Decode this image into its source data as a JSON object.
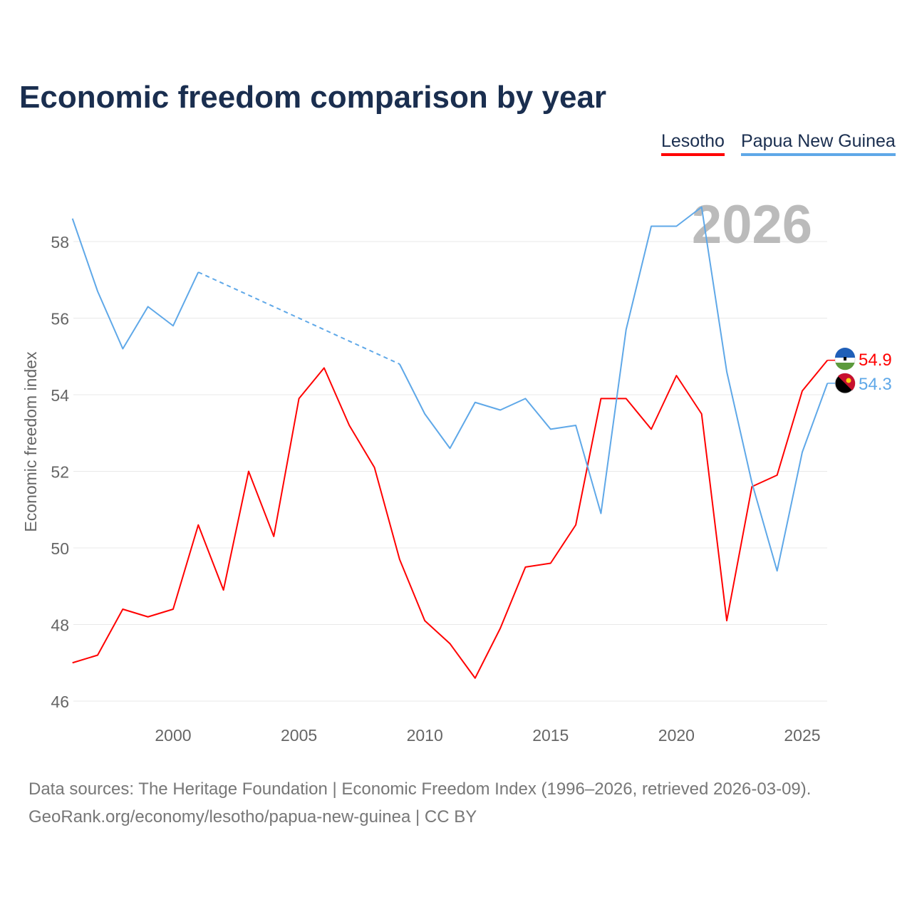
{
  "chart_data": {
    "type": "line",
    "title": "Economic freedom comparison by year",
    "xlabel": "",
    "ylabel": "Economic freedom index",
    "xlim": [
      1996,
      2026
    ],
    "ylim": [
      45.5,
      59.2
    ],
    "x_ticks": [
      2000,
      2005,
      2010,
      2015,
      2020,
      2025
    ],
    "y_ticks": [
      46,
      48,
      50,
      52,
      54,
      56,
      58
    ],
    "grid": true,
    "legend": "top-right",
    "watermark_year": "2026",
    "x": [
      1996,
      1997,
      1998,
      1999,
      2000,
      2001,
      2002,
      2003,
      2004,
      2005,
      2006,
      2007,
      2008,
      2009,
      2010,
      2011,
      2012,
      2013,
      2014,
      2015,
      2016,
      2017,
      2018,
      2019,
      2020,
      2021,
      2022,
      2023,
      2024,
      2025,
      2026
    ],
    "series": [
      {
        "name": "Lesotho",
        "color": "#ff0000",
        "end_label": "54.9",
        "values": [
          47.0,
          47.2,
          48.4,
          48.2,
          48.4,
          50.6,
          48.9,
          52.0,
          50.3,
          53.9,
          54.7,
          53.2,
          52.1,
          49.7,
          48.1,
          47.5,
          46.6,
          47.9,
          49.5,
          49.6,
          50.6,
          53.9,
          53.9,
          53.1,
          54.5,
          53.5,
          48.1,
          51.6,
          51.9,
          54.1,
          54.9
        ]
      },
      {
        "name": "Papua New Guinea",
        "color": "#5fa8e8",
        "end_label": "54.3",
        "values": [
          58.6,
          56.7,
          55.2,
          56.3,
          55.8,
          57.2,
          null,
          null,
          null,
          null,
          null,
          null,
          null,
          54.8,
          53.5,
          52.6,
          53.8,
          53.6,
          53.9,
          53.1,
          53.2,
          50.9,
          55.7,
          58.4,
          58.4,
          58.9,
          54.6,
          51.7,
          49.4,
          52.5,
          54.3
        ]
      }
    ]
  },
  "footer": {
    "line1": "Data sources: The Heritage Foundation | Economic Freedom Index (1996–2026, retrieved 2026-03-09).",
    "line2": "GeoRank.org/economy/lesotho/papua-new-guinea | CC BY"
  }
}
